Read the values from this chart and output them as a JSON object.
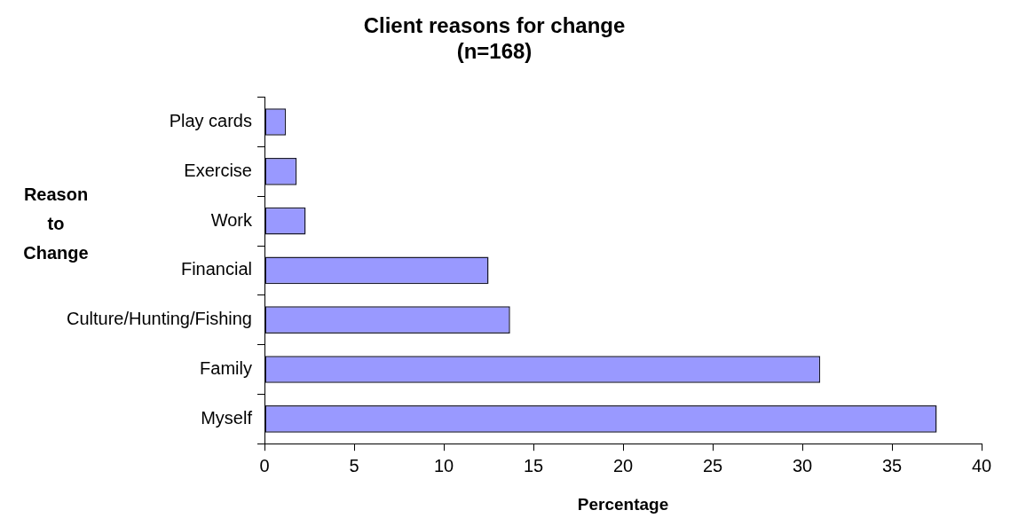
{
  "chart_data": {
    "type": "bar",
    "orientation": "horizontal",
    "title": "Client reasons for change\n(n=168)",
    "xlabel": "Percentage",
    "ylabel": "Reason to Change",
    "categories": [
      "Play cards",
      "Exercise",
      "Work",
      "Financial",
      "Culture/Hunting/Fishing",
      "Family",
      "Myself"
    ],
    "values": [
      1.2,
      1.8,
      2.3,
      12.5,
      13.7,
      31.0,
      37.5
    ],
    "color": "#9999ff",
    "xlim": [
      0,
      40
    ],
    "xticks": [
      0,
      5,
      10,
      15,
      20,
      25,
      30,
      35,
      40
    ],
    "grid": false,
    "legend": false
  }
}
